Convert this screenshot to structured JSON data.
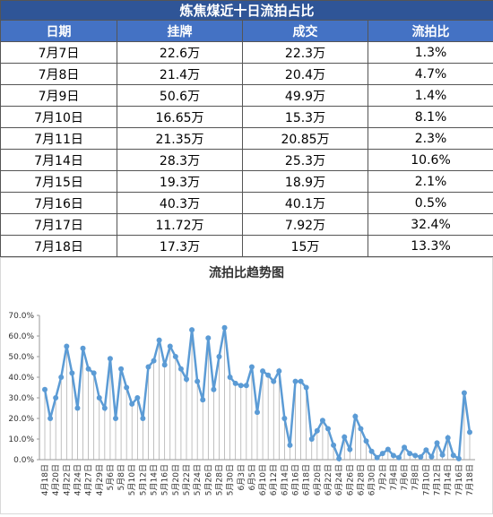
{
  "table": {
    "title": "炼焦煤近十日流拍占比",
    "headers": [
      "日期",
      "挂牌",
      "成交",
      "流拍比"
    ],
    "rows": [
      [
        "7月7日",
        "22.6万",
        "22.3万",
        "1.3%"
      ],
      [
        "7月8日",
        "21.4万",
        "20.4万",
        "4.7%"
      ],
      [
        "7月9日",
        "50.6万",
        "49.9万",
        "1.4%"
      ],
      [
        "7月10日",
        "16.65万",
        "15.3万",
        "8.1%"
      ],
      [
        "7月11日",
        "21.35万",
        "20.85万",
        "2.3%"
      ],
      [
        "7月14日",
        "28.3万",
        "25.3万",
        "10.6%"
      ],
      [
        "7月15日",
        "19.3万",
        "18.9万",
        "2.1%"
      ],
      [
        "7月16日",
        "40.3万",
        "40.1万",
        "0.5%"
      ],
      [
        "7月17日",
        "11.72万",
        "7.92万",
        "32.4%"
      ],
      [
        "7月18日",
        "17.3万",
        "15万",
        "13.3%"
      ]
    ]
  },
  "chart_data": {
    "type": "line",
    "title": "流拍比趋势图",
    "color": "#5b9bd5",
    "drop_lines": true,
    "categories": [
      "4月18日",
      null,
      "4月20日",
      null,
      "4月22日",
      null,
      "4月24日",
      null,
      "4月27日",
      null,
      "4月29日",
      null,
      "5月6日",
      null,
      "5月8日",
      null,
      "5月10日",
      null,
      "5月12日",
      null,
      "5月14日",
      null,
      "5月16日",
      null,
      "5月20日",
      null,
      "5月22日",
      null,
      "5月24日",
      null,
      "5月26日",
      null,
      "5月28日",
      null,
      "5月30日",
      null,
      "6月3日",
      null,
      "6月5日",
      null,
      "6月10日",
      null,
      "6月12日",
      null,
      "6月14日",
      null,
      "6月16日",
      null,
      "6月18日",
      null,
      "6月20日",
      null,
      "6月22日",
      null,
      "6月24日",
      null,
      "6月26日",
      null,
      "6月28日",
      null,
      "6月30日",
      null,
      "7月2日",
      null,
      "7月4日",
      null,
      "7月6日",
      null,
      "7月8日",
      null,
      "7月10日",
      null,
      "7月12日",
      null,
      "7月14日",
      null,
      "7月16日",
      null,
      "7月18日"
    ],
    "values": [
      34,
      20,
      30,
      40,
      55,
      42,
      25,
      54,
      44,
      42,
      30,
      25,
      49,
      20,
      44,
      35,
      27,
      30,
      20,
      45,
      48,
      58,
      46,
      55,
      50,
      44,
      39,
      63,
      38,
      29,
      59,
      34,
      50,
      64,
      40,
      37,
      36,
      36,
      45,
      23,
      43,
      41,
      38,
      43,
      20,
      7,
      38,
      38,
      35,
      10,
      14,
      19,
      15,
      7,
      0.5,
      11,
      5,
      21,
      15,
      9,
      4,
      1,
      3,
      5,
      2,
      1,
      6,
      3,
      2,
      1.3,
      4.7,
      1.4,
      8.1,
      2.3,
      10.6,
      2.1,
      0.5,
      32.4,
      13.3
    ],
    "ylim": [
      0,
      70
    ],
    "yticks": [
      {
        "value": 0,
        "label": "0.0%"
      },
      {
        "value": 10,
        "label": "10.0%"
      },
      {
        "value": 20,
        "label": "20.0%"
      },
      {
        "value": 30,
        "label": "30.0%"
      },
      {
        "value": 40,
        "label": "40.0%"
      },
      {
        "value": 50,
        "label": "50.0%"
      },
      {
        "value": 60,
        "label": "60.0%"
      },
      {
        "value": 70,
        "label": "70.0%"
      }
    ]
  }
}
